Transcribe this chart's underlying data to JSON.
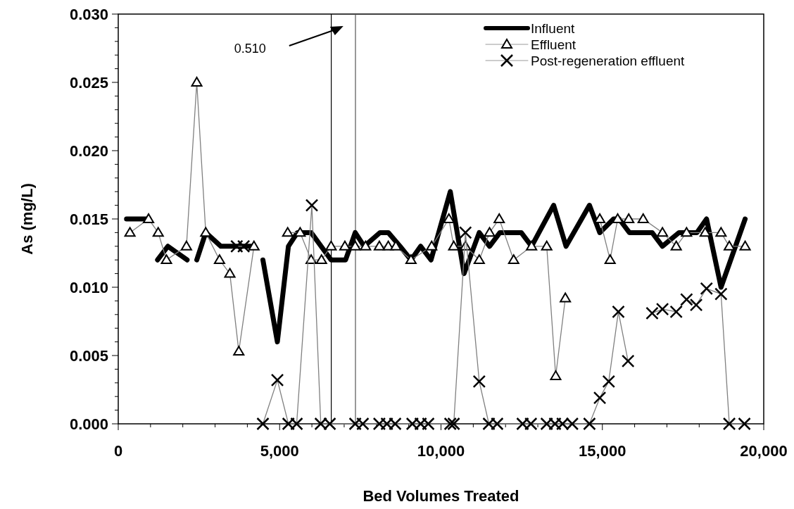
{
  "chart_data": {
    "type": "line",
    "xlabel": "Bed Volumes Treated",
    "ylabel": "As (mg/L)",
    "xlim": [
      0,
      20000
    ],
    "ylim": [
      0,
      0.03
    ],
    "xticks": [
      {
        "value": 0,
        "label": "0"
      },
      {
        "value": 1000,
        "label": null
      },
      {
        "value": 2000,
        "label": null
      },
      {
        "value": 3000,
        "label": null
      },
      {
        "value": 4000,
        "label": null
      },
      {
        "value": 5000,
        "label": "5,000"
      },
      {
        "value": 6000,
        "label": null
      },
      {
        "value": 7000,
        "label": null
      },
      {
        "value": 8000,
        "label": null
      },
      {
        "value": 9000,
        "label": null
      },
      {
        "value": 10000,
        "label": "10,000"
      },
      {
        "value": 11000,
        "label": null
      },
      {
        "value": 12000,
        "label": null
      },
      {
        "value": 13000,
        "label": null
      },
      {
        "value": 14000,
        "label": null
      },
      {
        "value": 15000,
        "label": "15,000"
      },
      {
        "value": 16000,
        "label": null
      },
      {
        "value": 17000,
        "label": null
      },
      {
        "value": 18000,
        "label": null
      },
      {
        "value": 19000,
        "label": null
      },
      {
        "value": 20000,
        "label": "20,000"
      }
    ],
    "yticks": [
      {
        "value": 0,
        "label": "0.000"
      },
      {
        "value": 0.001,
        "label": null
      },
      {
        "value": 0.002,
        "label": null
      },
      {
        "value": 0.003,
        "label": null
      },
      {
        "value": 0.004,
        "label": null
      },
      {
        "value": 0.005,
        "label": "0.005"
      },
      {
        "value": 0.006,
        "label": null
      },
      {
        "value": 0.007,
        "label": null
      },
      {
        "value": 0.008,
        "label": null
      },
      {
        "value": 0.009,
        "label": null
      },
      {
        "value": 0.01,
        "label": "0.010"
      },
      {
        "value": 0.011,
        "label": null
      },
      {
        "value": 0.012,
        "label": null
      },
      {
        "value": 0.013,
        "label": null
      },
      {
        "value": 0.014,
        "label": null
      },
      {
        "value": 0.015,
        "label": "0.015"
      },
      {
        "value": 0.016,
        "label": null
      },
      {
        "value": 0.017,
        "label": null
      },
      {
        "value": 0.018,
        "label": null
      },
      {
        "value": 0.019,
        "label": null
      },
      {
        "value": 0.02,
        "label": "0.020"
      },
      {
        "value": 0.021,
        "label": null
      },
      {
        "value": 0.022,
        "label": null
      },
      {
        "value": 0.023,
        "label": null
      },
      {
        "value": 0.024,
        "label": null
      },
      {
        "value": 0.025,
        "label": "0.025"
      },
      {
        "value": 0.026,
        "label": null
      },
      {
        "value": 0.027,
        "label": null
      },
      {
        "value": 0.028,
        "label": null
      },
      {
        "value": 0.029,
        "label": null
      },
      {
        "value": 0.03,
        "label": "0.030"
      }
    ],
    "grid": false,
    "legend": "top right",
    "ref_lines": [
      {
        "axis": "x",
        "value": 6600,
        "color": "#000000"
      },
      {
        "axis": "x",
        "value": 7350,
        "color": "#555555"
      }
    ],
    "annotations": [
      "0.510"
    ],
    "series": [
      {
        "name": "Influent",
        "color": "#000000",
        "marker": "none",
        "x": [
          256,
          939,
          1000,
          1217,
          1537,
          2134,
          2200,
          2433,
          2711,
          3180,
          4162,
          4300,
          4482,
          4930,
          5272,
          5550,
          5977,
          6595,
          7044,
          7342,
          7620,
          8111,
          8367,
          8730,
          9071,
          9370,
          9690,
          10288,
          10715,
          11185,
          11505,
          11825,
          12487,
          12807,
          13490,
          13874,
          14600,
          14920,
          15347,
          15518,
          15838,
          16542,
          16862,
          17375,
          17929,
          18228,
          18677,
          19424
        ],
        "values": [
          0.015,
          0.015,
          null,
          0.012,
          0.013,
          0.012,
          null,
          0.012,
          0.014,
          0.013,
          0.013,
          null,
          0.012,
          0.006,
          0.013,
          0.014,
          0.014,
          0.012,
          0.012,
          0.014,
          0.013,
          0.014,
          0.014,
          0.013,
          0.012,
          0.013,
          0.012,
          0.017,
          0.011,
          0.014,
          0.013,
          0.014,
          0.014,
          0.013,
          0.016,
          0.013,
          0.016,
          0.014,
          0.015,
          0.015,
          0.014,
          0.014,
          0.013,
          0.014,
          0.014,
          0.015,
          0.01,
          0.015
        ]
      },
      {
        "name": "Effluent",
        "color": "#808080",
        "marker": "triangle",
        "x": [
          363,
          939,
          1238,
          1494,
          2113,
          2433,
          2711,
          3138,
          3458,
          3735,
          4205,
          4700,
          5250,
          5635,
          5977,
          6297,
          6595,
          7022,
          7342,
          7663,
          8090,
          8367,
          8600,
          9071,
          9712,
          10245,
          10395,
          10758,
          11185,
          11505,
          11804,
          12252,
          12807,
          13276,
          13554,
          13853,
          14400,
          14920,
          15240,
          15475,
          15817,
          16265,
          16862,
          17289,
          17609,
          18186,
          18677,
          18933,
          19424
        ],
        "values": [
          0.014,
          0.015,
          0.014,
          0.012,
          0.013,
          0.025,
          0.014,
          0.012,
          0.011,
          0.0053,
          0.013,
          null,
          0.014,
          0.014,
          0.012,
          0.012,
          0.013,
          0.013,
          0.013,
          0.013,
          0.013,
          0.013,
          0.013,
          0.012,
          0.013,
          0.015,
          0.013,
          0.013,
          0.012,
          0.014,
          0.015,
          0.012,
          0.013,
          0.013,
          0.0035,
          0.0092,
          null,
          0.015,
          0.012,
          0.015,
          0.015,
          0.015,
          0.014,
          0.013,
          0.014,
          0.014,
          0.014,
          0.013,
          0.013
        ]
      },
      {
        "name": "Post-regeneration effluent",
        "color": "#808080",
        "marker": "cross",
        "x": [
          3671,
          3885,
          4200,
          4482,
          4930,
          5272,
          5528,
          5998,
          6275,
          6553,
          7342,
          7577,
          8090,
          8324,
          8580,
          9114,
          9370,
          9605,
          10288,
          10395,
          10758,
          11185,
          11484,
          11740,
          12530,
          12785,
          13276,
          13533,
          13767,
          14066,
          14600,
          14920,
          15197,
          15496,
          15795,
          16200,
          16542,
          16862,
          17289,
          17609,
          17908,
          18228,
          18677,
          18933,
          19402
        ],
        "values": [
          0.013,
          0.013,
          null,
          0,
          0.0032,
          0,
          0,
          0.016,
          0,
          0,
          0,
          0,
          0,
          0,
          0,
          0,
          0,
          0,
          0,
          0,
          0.014,
          0.0031,
          0,
          0,
          0,
          0,
          0,
          0,
          0,
          0,
          0,
          0.0019,
          0.0031,
          0.0082,
          0.0046,
          null,
          0.0081,
          0.0084,
          0.0082,
          0.0091,
          0.0087,
          0.0099,
          0.0095,
          0,
          0
        ]
      }
    ]
  }
}
